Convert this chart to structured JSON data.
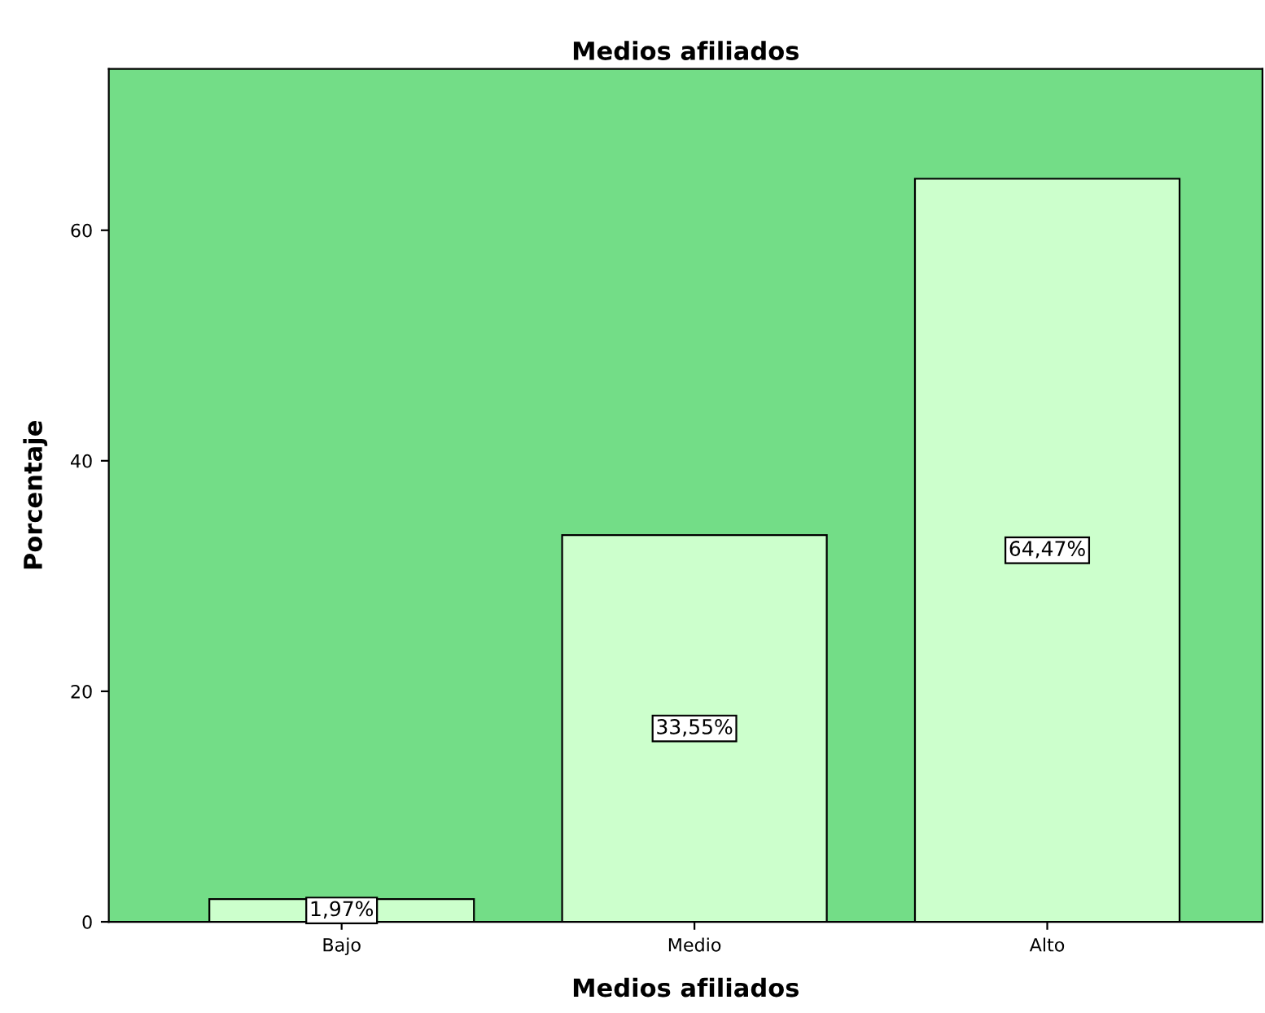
{
  "chart_data": {
    "type": "bar",
    "title": "Medios afiliados",
    "xlabel": "Medios afiliados",
    "ylabel": "Porcentaje",
    "categories": [
      "Bajo",
      "Medio",
      "Alto"
    ],
    "values": [
      1.97,
      33.55,
      64.47
    ],
    "value_labels": [
      "1,97%",
      "33,55%",
      "64,47%"
    ],
    "color": "#ccffcc",
    "ylim": [
      0,
      74
    ],
    "yticks": [
      0,
      20,
      40,
      60
    ],
    "grid": false,
    "legend": false
  }
}
